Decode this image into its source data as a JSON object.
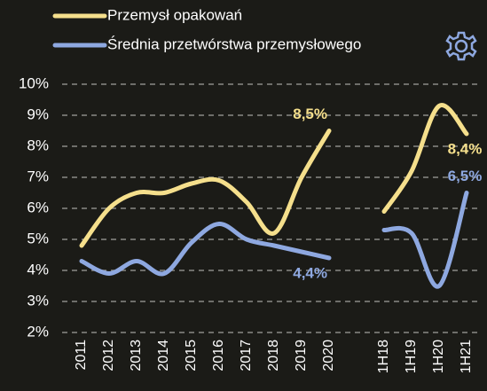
{
  "chart_data": {
    "type": "line",
    "categories": [
      "2011",
      "2012",
      "2013",
      "2014",
      "2015",
      "2016",
      "2017",
      "2018",
      "2019",
      "2020",
      null,
      "1H18",
      "1H19",
      "1H20",
      "1H21"
    ],
    "series": [
      {
        "name": "Przemysł opakowań",
        "color": "#f5df8c",
        "values": [
          4.8,
          6.0,
          6.5,
          6.5,
          6.8,
          6.9,
          6.2,
          5.2,
          7.0,
          8.5,
          null,
          5.9,
          7.2,
          9.3,
          8.4
        ],
        "value_labels": [
          null,
          null,
          null,
          null,
          null,
          null,
          null,
          null,
          null,
          "8,5%",
          null,
          null,
          null,
          null,
          "8,4%"
        ]
      },
      {
        "name": "Średnia przetwórstwa przemysłowego",
        "color": "#8ea8e0",
        "values": [
          4.3,
          3.9,
          4.3,
          3.9,
          4.9,
          5.5,
          5.0,
          4.8,
          4.6,
          4.4,
          null,
          5.3,
          5.2,
          3.5,
          6.5
        ],
        "value_labels": [
          null,
          null,
          null,
          null,
          null,
          null,
          null,
          null,
          null,
          "4,4%",
          null,
          null,
          null,
          null,
          "6,5%"
        ]
      }
    ],
    "ylim": [
      2,
      10
    ],
    "yticks": [
      {
        "value": 2,
        "label": "2%"
      },
      {
        "value": 3,
        "label": "3%"
      },
      {
        "value": 4,
        "label": "4%"
      },
      {
        "value": 5,
        "label": "5%"
      },
      {
        "value": 6,
        "label": "6%"
      },
      {
        "value": 7,
        "label": "7%"
      },
      {
        "value": 8,
        "label": "8%"
      },
      {
        "value": 9,
        "label": "9%"
      },
      {
        "value": 10,
        "label": "10%"
      }
    ],
    "grid": true
  }
}
